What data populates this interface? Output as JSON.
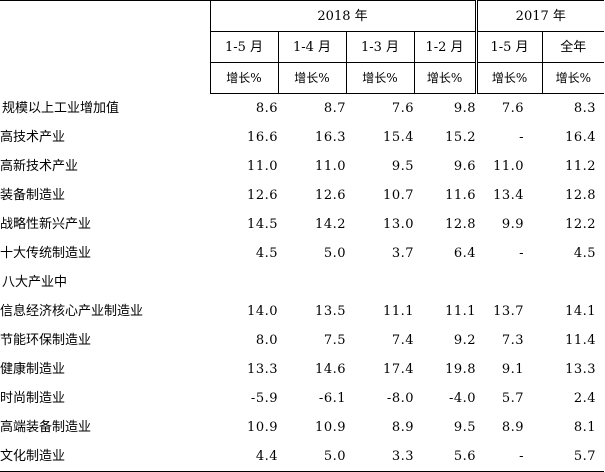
{
  "header": {
    "year_2018": "2018 年",
    "year_2017": "2017 年",
    "periods": [
      "1-5 月",
      "1-4 月",
      "1-3 月",
      "1-2 月",
      "1-5 月",
      "全年"
    ],
    "unit": "增长%"
  },
  "rows": [
    {
      "name": "规模以上工业增加值",
      "level": 0,
      "values": [
        "8.6",
        "8.7",
        "7.6",
        "9.8",
        "7.6",
        "8.3"
      ]
    },
    {
      "name": "高技术产业",
      "level": 1,
      "values": [
        "16.6",
        "16.3",
        "15.4",
        "15.2",
        "-",
        "16.4"
      ]
    },
    {
      "name": "高新技术产业",
      "level": 1,
      "values": [
        "11.0",
        "11.0",
        "9.5",
        "9.6",
        "11.0",
        "11.2"
      ]
    },
    {
      "name": "装备制造业",
      "level": 1,
      "values": [
        "12.6",
        "12.6",
        "10.7",
        "11.6",
        "13.4",
        "12.8"
      ]
    },
    {
      "name": "战略性新兴产业",
      "level": 1,
      "values": [
        "14.5",
        "14.2",
        "13.0",
        "12.8",
        "9.9",
        "12.2"
      ]
    },
    {
      "name": "十大传统制造业",
      "level": 1,
      "values": [
        "4.5",
        "5.0",
        "3.7",
        "6.4",
        "-",
        "4.5"
      ]
    },
    {
      "name": "八大产业中",
      "level": 0,
      "values": [
        "",
        "",
        "",
        "",
        "",
        ""
      ]
    },
    {
      "name": "信息经济核心产业制造业",
      "level": 1,
      "values": [
        "14.0",
        "13.5",
        "11.1",
        "11.1",
        "13.7",
        "14.1"
      ]
    },
    {
      "name": "节能环保制造业",
      "level": 1,
      "values": [
        "8.0",
        "7.5",
        "7.4",
        "9.2",
        "7.3",
        "11.4"
      ]
    },
    {
      "name": "健康制造业",
      "level": 1,
      "values": [
        "13.3",
        "14.6",
        "17.4",
        "19.8",
        "9.1",
        "13.3"
      ]
    },
    {
      "name": "时尚制造业",
      "level": 1,
      "values": [
        "-5.9",
        "-6.1",
        "-8.0",
        "-4.0",
        "5.7",
        "2.4"
      ]
    },
    {
      "name": "高端装备制造业",
      "level": 1,
      "values": [
        "10.9",
        "10.9",
        "8.9",
        "9.5",
        "8.9",
        "8.1"
      ]
    },
    {
      "name": "文化制造业",
      "level": 1,
      "values": [
        "4.4",
        "5.0",
        "3.3",
        "5.6",
        "-",
        "5.7"
      ]
    }
  ]
}
